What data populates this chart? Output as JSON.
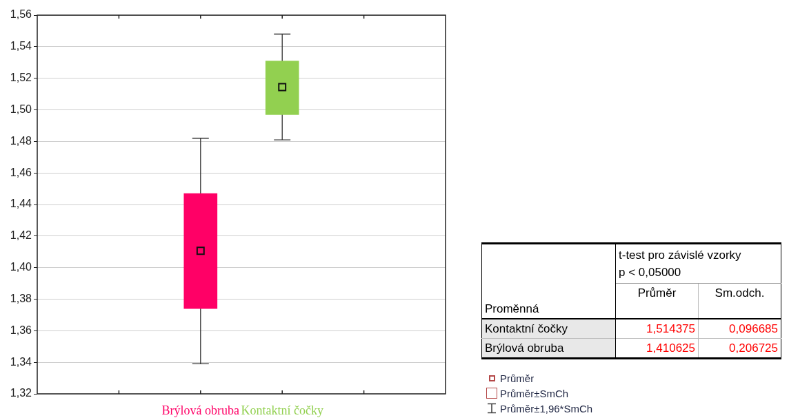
{
  "chart_data": {
    "type": "box",
    "categories": [
      "Brýlová obruba",
      "Kontaktní čočky"
    ],
    "colors": [
      "#ff0066",
      "#92d050"
    ],
    "boxes": [
      {
        "low": 1.339,
        "q1": 1.374,
        "q3": 1.447,
        "high": 1.482,
        "mean": 1.410625
      },
      {
        "low": 1.481,
        "q1": 1.497,
        "q3": 1.531,
        "high": 1.548,
        "mean": 1.514375
      }
    ],
    "ylim": [
      1.32,
      1.56
    ],
    "yticks": [
      {
        "value": 1.32,
        "label": "1,32"
      },
      {
        "value": 1.34,
        "label": "1,34"
      },
      {
        "value": 1.36,
        "label": "1,36"
      },
      {
        "value": 1.38,
        "label": "1,38"
      },
      {
        "value": 1.4,
        "label": "1,40"
      },
      {
        "value": 1.42,
        "label": "1,42"
      },
      {
        "value": 1.44,
        "label": "1,44"
      },
      {
        "value": 1.46,
        "label": "1,46"
      },
      {
        "value": 1.48,
        "label": "1,48"
      },
      {
        "value": 1.5,
        "label": "1,50"
      },
      {
        "value": 1.52,
        "label": "1,52"
      },
      {
        "value": 1.54,
        "label": "1,54"
      },
      {
        "value": 1.56,
        "label": "1,56"
      }
    ],
    "grid": "y",
    "marker": "square",
    "annotations": [
      "t-test pro závislé vzorky",
      "p < 0,05000",
      "Proměnná",
      "Průměr",
      "Sm.odch.",
      "Kontaktní čočky",
      "1,514375",
      "0,096685",
      "Brýlová obruba",
      "1,410625",
      "0,206725",
      "Průměr",
      "Průměr±SmCh",
      "Průměr±1,96*SmCh"
    ]
  }
}
